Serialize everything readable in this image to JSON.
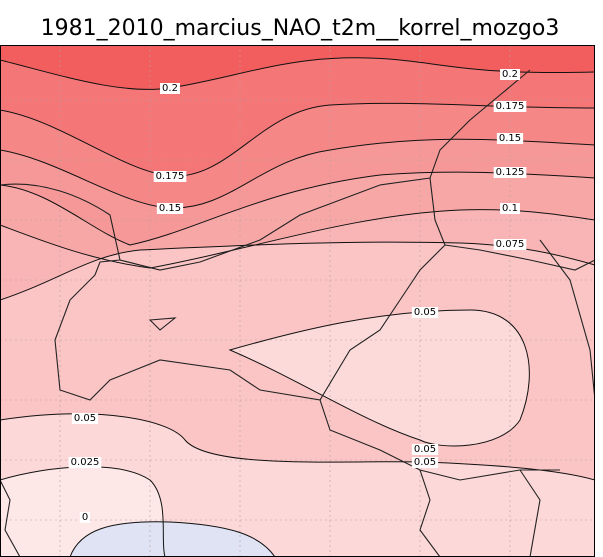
{
  "title": "1981_2010_marcius_NAO_t2m__korrel_mozgo3",
  "contour_labels": [
    "0.2",
    "0.175",
    "0.15",
    "0.2",
    "0.175",
    "0.15",
    "0.125",
    "0.1",
    "0.075",
    "0.05",
    "0.05",
    "0.025",
    "0.05",
    "0.05",
    "0"
  ]
}
